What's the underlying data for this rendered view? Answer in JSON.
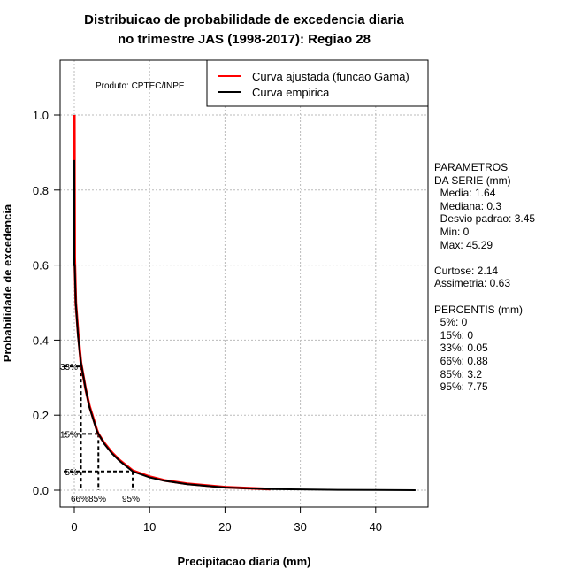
{
  "chart_data": {
    "type": "line",
    "title": [
      "Distribuicao de probabilidade de excedencia diaria",
      "no trimestre JAS (1998-2017): Regiao 28"
    ],
    "xlabel": "Precipitacao diaria (mm)",
    "ylabel": "Probabilidade de excedencia",
    "xlim": [
      -2,
      47
    ],
    "ylim": [
      -0.045,
      1.14
    ],
    "xticks": [
      0,
      10,
      20,
      30,
      40
    ],
    "yticks": [
      0.0,
      0.2,
      0.4,
      0.6,
      0.8,
      1.0
    ],
    "ytick_labels": [
      "0.0",
      "0.2",
      "0.4",
      "0.6",
      "0.8",
      "1.0"
    ],
    "grid": true,
    "legend_position": "top-right",
    "product": "Produto: CPTEC/INPE",
    "series": [
      {
        "name": "Curva ajustada (funcao Gama)",
        "color": "#ff0000",
        "x": [
          0,
          0.05,
          0.2,
          0.5,
          0.88,
          1.5,
          2,
          3,
          3.2,
          4,
          5,
          6,
          7.75,
          10,
          12,
          15,
          20,
          26
        ],
        "y": [
          1.0,
          0.62,
          0.5,
          0.42,
          0.34,
          0.27,
          0.225,
          0.16,
          0.15,
          0.125,
          0.1,
          0.08,
          0.052,
          0.036,
          0.026,
          0.017,
          0.008,
          0.003
        ]
      },
      {
        "name": "Curva empirica",
        "color": "#000000",
        "x": [
          0,
          0,
          0,
          0.05,
          0.2,
          0.5,
          0.88,
          1.5,
          2,
          3,
          3.2,
          4,
          5,
          6,
          7.75,
          10,
          12,
          15,
          20,
          26,
          30,
          35,
          40,
          45.29
        ],
        "y": [
          0.88,
          0.67,
          0.6,
          0.6,
          0.5,
          0.41,
          0.34,
          0.27,
          0.222,
          0.158,
          0.15,
          0.123,
          0.098,
          0.078,
          0.05,
          0.034,
          0.025,
          0.016,
          0.007,
          0.003,
          0.002,
          0.001,
          0.0005,
          0.0
        ]
      }
    ],
    "percentile_markers": [
      {
        "label": "33%",
        "prob": 0.33,
        "x": 0.88,
        "xlabel": "66%"
      },
      {
        "label": "15%",
        "prob": 0.15,
        "x": 3.2,
        "xlabel": "85%"
      },
      {
        "label": "5%",
        "prob": 0.05,
        "x": 7.75,
        "xlabel": "95%"
      }
    ]
  },
  "stats": {
    "header1": "PARAMETROS",
    "header2": "DA SERIE (mm)",
    "media": "  Media: 1.64",
    "mediana": "  Mediana: 0.3",
    "desvio": "  Desvio padrao: 3.45",
    "min": "  Min: 0",
    "max": "  Max: 45.29",
    "curtose": "Curtose: 2.14",
    "assimetria": "Assimetria: 0.63",
    "perc_header": "PERCENTIS (mm)",
    "p5": "  5%: 0",
    "p15": "  15%: 0",
    "p33": "  33%: 0.05",
    "p66": "  66%: 0.88",
    "p85": "  85%: 3.2",
    "p95": "  95%: 7.75"
  }
}
